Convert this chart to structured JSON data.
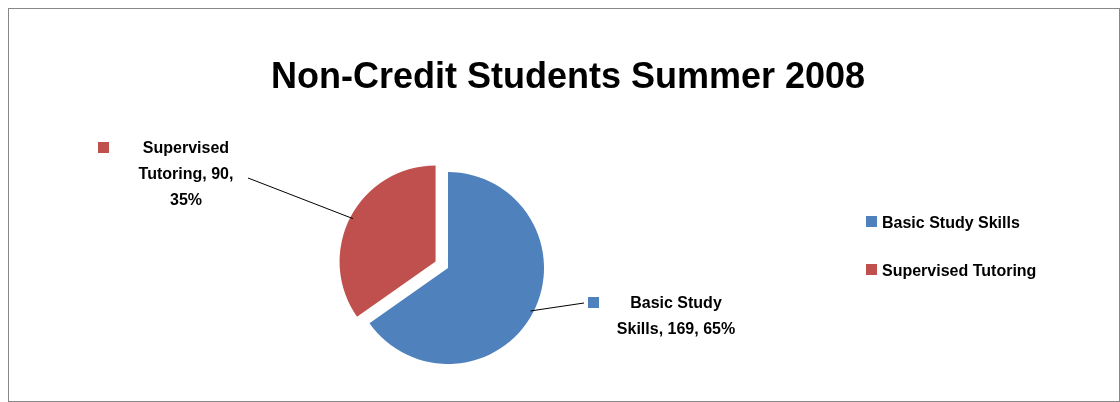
{
  "chart_data": {
    "type": "pie",
    "title": "Non-Credit Students Summer 2008",
    "categories": [
      "Basic Study Skills",
      "Supervised Tutoring"
    ],
    "values": [
      169,
      90
    ],
    "colors": [
      "#4f81bd",
      "#c0504d"
    ],
    "value_labels": [
      "Basic Study Skills, 169, 65%",
      "Supervised Tutoring, 90, 35%"
    ],
    "legend": "right"
  }
}
